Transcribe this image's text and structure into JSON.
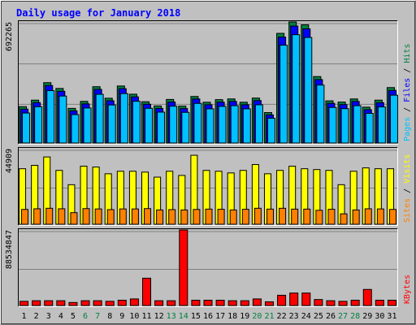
{
  "chart_data": {
    "type": "bar",
    "title": "Daily usage for January 2018",
    "categories": [
      "1",
      "2",
      "3",
      "4",
      "5",
      "6",
      "7",
      "8",
      "9",
      "10",
      "11",
      "12",
      "13",
      "14",
      "15",
      "16",
      "17",
      "18",
      "19",
      "20",
      "21",
      "22",
      "23",
      "24",
      "25",
      "26",
      "27",
      "28",
      "29",
      "30",
      "31"
    ],
    "weekend_days": [
      "6",
      "7",
      "13",
      "14",
      "20",
      "21",
      "27",
      "28"
    ],
    "panels": [
      {
        "id": "top",
        "max_label": "692265",
        "ylim": [
          0,
          692265
        ],
        "right_labels": [
          {
            "text": "Pages",
            "color": "#00c0ff"
          },
          {
            "text": "Files",
            "color": "#0000ff"
          },
          {
            "text": "Hits",
            "color": "#008040"
          }
        ],
        "series": [
          {
            "name": "Hits",
            "color": "#008040",
            "values": [
              208000,
              245000,
              345000,
              312000,
              198000,
              238000,
              322000,
              256000,
              326000,
              279000,
              236000,
              212000,
              249000,
              211000,
              266000,
              233000,
              248000,
              252000,
              233000,
              257000,
              174000,
              627000,
              692265,
              676000,
              380000,
              241000,
              234000,
              252000,
              205000,
              245000,
              317000
            ]
          },
          {
            "name": "Files",
            "color": "#0000ff",
            "values": [
              203000,
              240000,
              338000,
              305000,
              193000,
              233000,
              316000,
              251000,
              320000,
              273000,
              231000,
              207000,
              244000,
              206000,
              261000,
              228000,
              243000,
              247000,
              228000,
              252000,
              170000,
              615000,
              678000,
              662000,
              372000,
              236000,
              229000,
              247000,
              200000,
              240000,
              310000
            ]
          },
          {
            "name": "Pages",
            "color": "#00c0ff",
            "values": [
              190000,
              226000,
              318000,
              287000,
              181000,
              219000,
              297000,
              236000,
              301000,
              257000,
              217000,
              195000,
              229000,
              194000,
              245000,
              214000,
              228000,
              232000,
              214000,
              237000,
              160000,
              578000,
              638000,
              622000,
              350000,
              222000,
              215000,
              232000,
              188000,
              225000,
              292000
            ]
          }
        ]
      },
      {
        "id": "middle",
        "max_label": "44909",
        "ylim": [
          0,
          44909
        ],
        "right_labels": [
          {
            "text": "Sites",
            "color": "#ff8000"
          },
          {
            "text": "Visits",
            "color": "#ffff00"
          }
        ],
        "series": [
          {
            "name": "Visits",
            "color": "#ffff00",
            "values": [
              33000,
              35000,
              40000,
              32000,
              23500,
              34500,
              34000,
              30000,
              31500,
              31500,
              31000,
              28000,
              31500,
              29000,
              41000,
              32000,
              31500,
              30500,
              32000,
              35500,
              30000,
              32000,
              34500,
              33000,
              32500,
              32000,
              23500,
              31500,
              33500,
              33000,
              33000
            ]
          },
          {
            "name": "Sites",
            "color": "#ff8000",
            "values": [
              8800,
              9200,
              9500,
              9200,
              6900,
              9300,
              9100,
              8700,
              9100,
              9100,
              9300,
              8500,
              8700,
              8500,
              8800,
              9000,
              8900,
              8500,
              8900,
              9500,
              9000,
              9500,
              9000,
              9000,
              8300,
              8900,
              6200,
              8500,
              9200,
              9100,
              8800
            ]
          }
        ]
      },
      {
        "id": "bottom",
        "max_label": "88534847",
        "ylim": [
          0,
          88534847
        ],
        "right_labels": [
          {
            "text": "KBytes",
            "color": "#ff0000"
          }
        ],
        "series": [
          {
            "name": "KBytes",
            "color": "#ff0000",
            "values": [
              4900000,
              5600000,
              5600000,
              5600000,
              3500000,
              5600000,
              5600000,
              4900000,
              6200000,
              7700000,
              32000000,
              5600000,
              5600000,
              88534847,
              6200000,
              6200000,
              6200000,
              5600000,
              5600000,
              7700000,
              4300000,
              12000000,
              14600000,
              14600000,
              7000000,
              5600000,
              4900000,
              6200000,
              18800000,
              6200000,
              6200000
            ]
          }
        ]
      }
    ]
  },
  "colors": {
    "background": "#c0c0c0",
    "plot_bg": "#c0c0c0",
    "title": "#0000ff",
    "weekday_label": "#000000",
    "weekend_label": "#008040",
    "gridline": "#808080",
    "bar_outline": "#000000"
  }
}
